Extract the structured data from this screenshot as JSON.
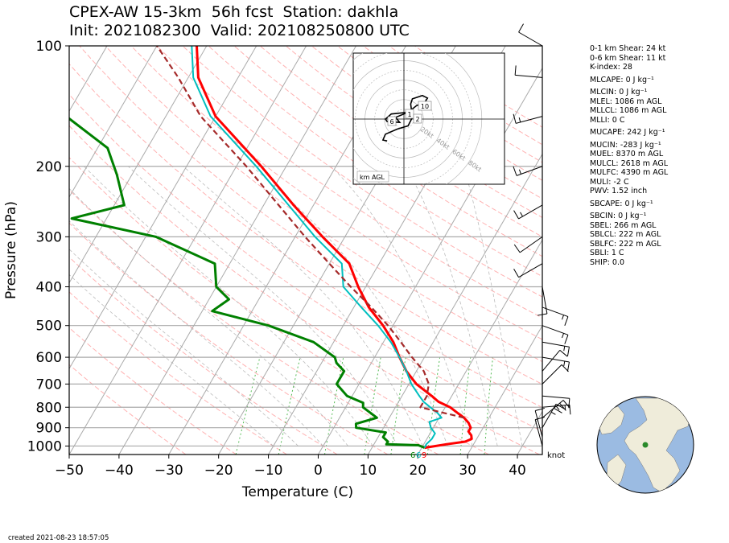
{
  "title": {
    "line1": "CPEX-AW 15-3km  56h fcst  Station: dakhla",
    "line2": "Init: 2021082300  Valid: 202108250800 UTC"
  },
  "indices": [
    "0-1 km Shear: 24 kt",
    "0-6 km Shear: 11 kt",
    "K-index: 28",
    "MLCAPE: 0 J kg⁻¹",
    "MLCIN: 0 J kg⁻¹",
    "MLEL: 1086 m AGL",
    "MLLCL: 1086 m AGL",
    "MLLI: 0 C",
    "MUCAPE: 242 J kg⁻¹",
    "MUCIN: -283 J kg⁻¹",
    "MUEL: 8370 m AGL",
    "MULCL: 2618 m AGL",
    "MULFC: 4390 m AGL",
    "MULI: -2 C",
    "PWV: 1.52 inch",
    "SBCAPE: 0 J kg⁻¹",
    "SBCIN: 0 J kg⁻¹",
    "SBEL: 266 m AGL",
    "SBLCL: 222 m AGL",
    "SBLFC: 222 m AGL",
    "SBLI: 1 C",
    "SHIP: 0.0"
  ],
  "footer": "created 2021-08-23 18:57:05",
  "hodograph": {
    "ring_labels": [
      "20kt",
      "40kt",
      "60kt",
      "80kt"
    ],
    "height_labels": [
      "1",
      "2",
      "6",
      "10"
    ],
    "legend": "km AGL"
  },
  "wind_unit_label": "knot",
  "surface_labels": [
    "6",
    "6",
    "9"
  ],
  "colors": {
    "temperature": "#ff0000",
    "dewpoint": "#008000",
    "virtual_temperature": "#00bfbf",
    "parcel": "#a52a2a",
    "isobars": "#aaaaaa",
    "dry_adiabats": "#ffaaaa",
    "moist_adiabats": "#aaaaaa",
    "mixing_ratio": "#55bb55",
    "globe_ocean": "#9bbbe2",
    "globe_land": "#efecda",
    "station_marker": "#2a8a2a"
  },
  "chart_data": {
    "type": "line",
    "diagram": "skew-T log-p",
    "xlabel": "Temperature (C)",
    "ylabel": "Pressure (hPa)",
    "xlim": [
      -50,
      45
    ],
    "ylim": [
      1050,
      100
    ],
    "x_ticks": [
      -50,
      -40,
      -30,
      -20,
      -10,
      0,
      10,
      20,
      30,
      40
    ],
    "y_ticks": [
      100,
      200,
      300,
      400,
      500,
      600,
      700,
      800,
      900,
      1000
    ],
    "y_scale": "log",
    "grid": true,
    "series": [
      {
        "key": "temperature",
        "pressure": [
          1010,
          990,
          975,
          960,
          940,
          920,
          900,
          875,
          850,
          825,
          800,
          775,
          750,
          700,
          650,
          600,
          550,
          500,
          450,
          400,
          350,
          300,
          250,
          200,
          150,
          120,
          100
        ],
        "values": [
          20.6,
          24.5,
          28.0,
          29.0,
          28.5,
          27.5,
          27.5,
          26.5,
          25.0,
          23.0,
          21.0,
          18.0,
          16.0,
          11.5,
          8.0,
          5.0,
          2.0,
          -2.0,
          -7.0,
          -11.5,
          -16.0,
          -24.5,
          -34.0,
          -45.0,
          -60.0,
          -68.0,
          -72.0
        ]
      },
      {
        "key": "dewpoint",
        "pressure": [
          1010,
          995,
          990,
          975,
          950,
          925,
          900,
          880,
          850,
          800,
          780,
          750,
          700,
          650,
          620,
          600,
          550,
          500,
          460,
          430,
          400,
          350,
          300,
          270,
          250,
          210,
          180,
          150,
          120,
          100
        ],
        "values": [
          20.6,
          19.0,
          12.5,
          12.5,
          11.0,
          11.0,
          4.5,
          4.0,
          7.5,
          3.5,
          3.0,
          -1.0,
          -4.5,
          -4.5,
          -7.0,
          -8.0,
          -14.0,
          -25.0,
          -38.0,
          -36.0,
          -40.0,
          -43.0,
          -58.0,
          -77.0,
          -68.0,
          -73.0,
          -78.0,
          -90.0,
          -100.0,
          -108.0
        ]
      },
      {
        "key": "virtual_temperature",
        "pressure": [
          1010,
          990,
          960,
          930,
          900,
          870,
          850,
          825,
          800,
          775,
          750,
          700,
          650,
          600,
          550,
          500,
          450,
          400,
          350,
          300,
          250,
          200,
          150,
          120,
          100
        ],
        "values": [
          20.6,
          20.5,
          21.0,
          21.0,
          19.5,
          18.5,
          20.5,
          19.0,
          17.0,
          15.0,
          13.5,
          10.5,
          8.0,
          5.0,
          1.5,
          -3.0,
          -8.5,
          -14.5,
          -17.5,
          -26.0,
          -35.0,
          -46.0,
          -61.0,
          -69.0,
          -73.0
        ]
      },
      {
        "key": "parcel",
        "pressure": [
          850,
          800,
          750,
          700,
          650,
          600,
          550,
          500,
          450,
          400,
          350,
          300,
          250,
          200,
          150,
          120,
          100
        ],
        "values": [
          25.0,
          15.0,
          15.0,
          14.0,
          11.5,
          7.5,
          3.5,
          -1.0,
          -6.5,
          -13.0,
          -20.0,
          -28.0,
          -37.0,
          -48.0,
          -63.0,
          -72.0,
          -80.0
        ]
      }
    ],
    "wind_barbs": [
      {
        "p": 1000,
        "speed_kt": 10,
        "dir_deg": 345
      },
      {
        "p": 950,
        "speed_kt": 10,
        "dir_deg": 345
      },
      {
        "p": 900,
        "speed_kt": 25,
        "dir_deg": 30
      },
      {
        "p": 850,
        "speed_kt": 25,
        "dir_deg": 50
      },
      {
        "p": 800,
        "speed_kt": 15,
        "dir_deg": 85
      },
      {
        "p": 750,
        "speed_kt": 10,
        "dir_deg": 95
      },
      {
        "p": 700,
        "speed_kt": 10,
        "dir_deg": 45
      },
      {
        "p": 650,
        "speed_kt": 10,
        "dir_deg": 40
      },
      {
        "p": 600,
        "speed_kt": 15,
        "dir_deg": 100
      },
      {
        "p": 550,
        "speed_kt": 15,
        "dir_deg": 100
      },
      {
        "p": 500,
        "speed_kt": 15,
        "dir_deg": 110
      },
      {
        "p": 450,
        "speed_kt": 15,
        "dir_deg": 110
      },
      {
        "p": 400,
        "speed_kt": 10,
        "dir_deg": 170
      },
      {
        "p": 350,
        "speed_kt": 10,
        "dir_deg": 240
      },
      {
        "p": 300,
        "speed_kt": 10,
        "dir_deg": 235
      },
      {
        "p": 250,
        "speed_kt": 15,
        "dir_deg": 240
      },
      {
        "p": 200,
        "speed_kt": 15,
        "dir_deg": 250
      },
      {
        "p": 150,
        "speed_kt": 15,
        "dir_deg": 255
      },
      {
        "p": 120,
        "speed_kt": 10,
        "dir_deg": 275
      },
      {
        "p": 100,
        "speed_kt": 10,
        "dir_deg": 300
      }
    ],
    "hodograph_points": [
      [
        1.0,
        0.5
      ],
      [
        0.5,
        0.8
      ],
      [
        -1.5,
        0.6
      ],
      [
        -2.2,
        0.0
      ],
      [
        -2.0,
        -0.3
      ],
      [
        -0.5,
        -0.4
      ],
      [
        -1.0,
        0.2
      ],
      [
        0.5,
        0.8
      ],
      [
        1.5,
        1.6
      ],
      [
        2.0,
        1.8
      ],
      [
        2.5,
        2.0
      ],
      [
        2.8,
        2.5
      ],
      [
        2.2,
        2.8
      ],
      [
        1.0,
        2.4
      ],
      [
        0.8,
        1.8
      ],
      [
        1.0,
        0.2
      ],
      [
        0.5,
        -0.8
      ],
      [
        -0.8,
        -1.2
      ],
      [
        -2.2,
        -1.8
      ],
      [
        -2.5,
        -2.5
      ],
      [
        -2.0,
        -2.6
      ]
    ]
  }
}
